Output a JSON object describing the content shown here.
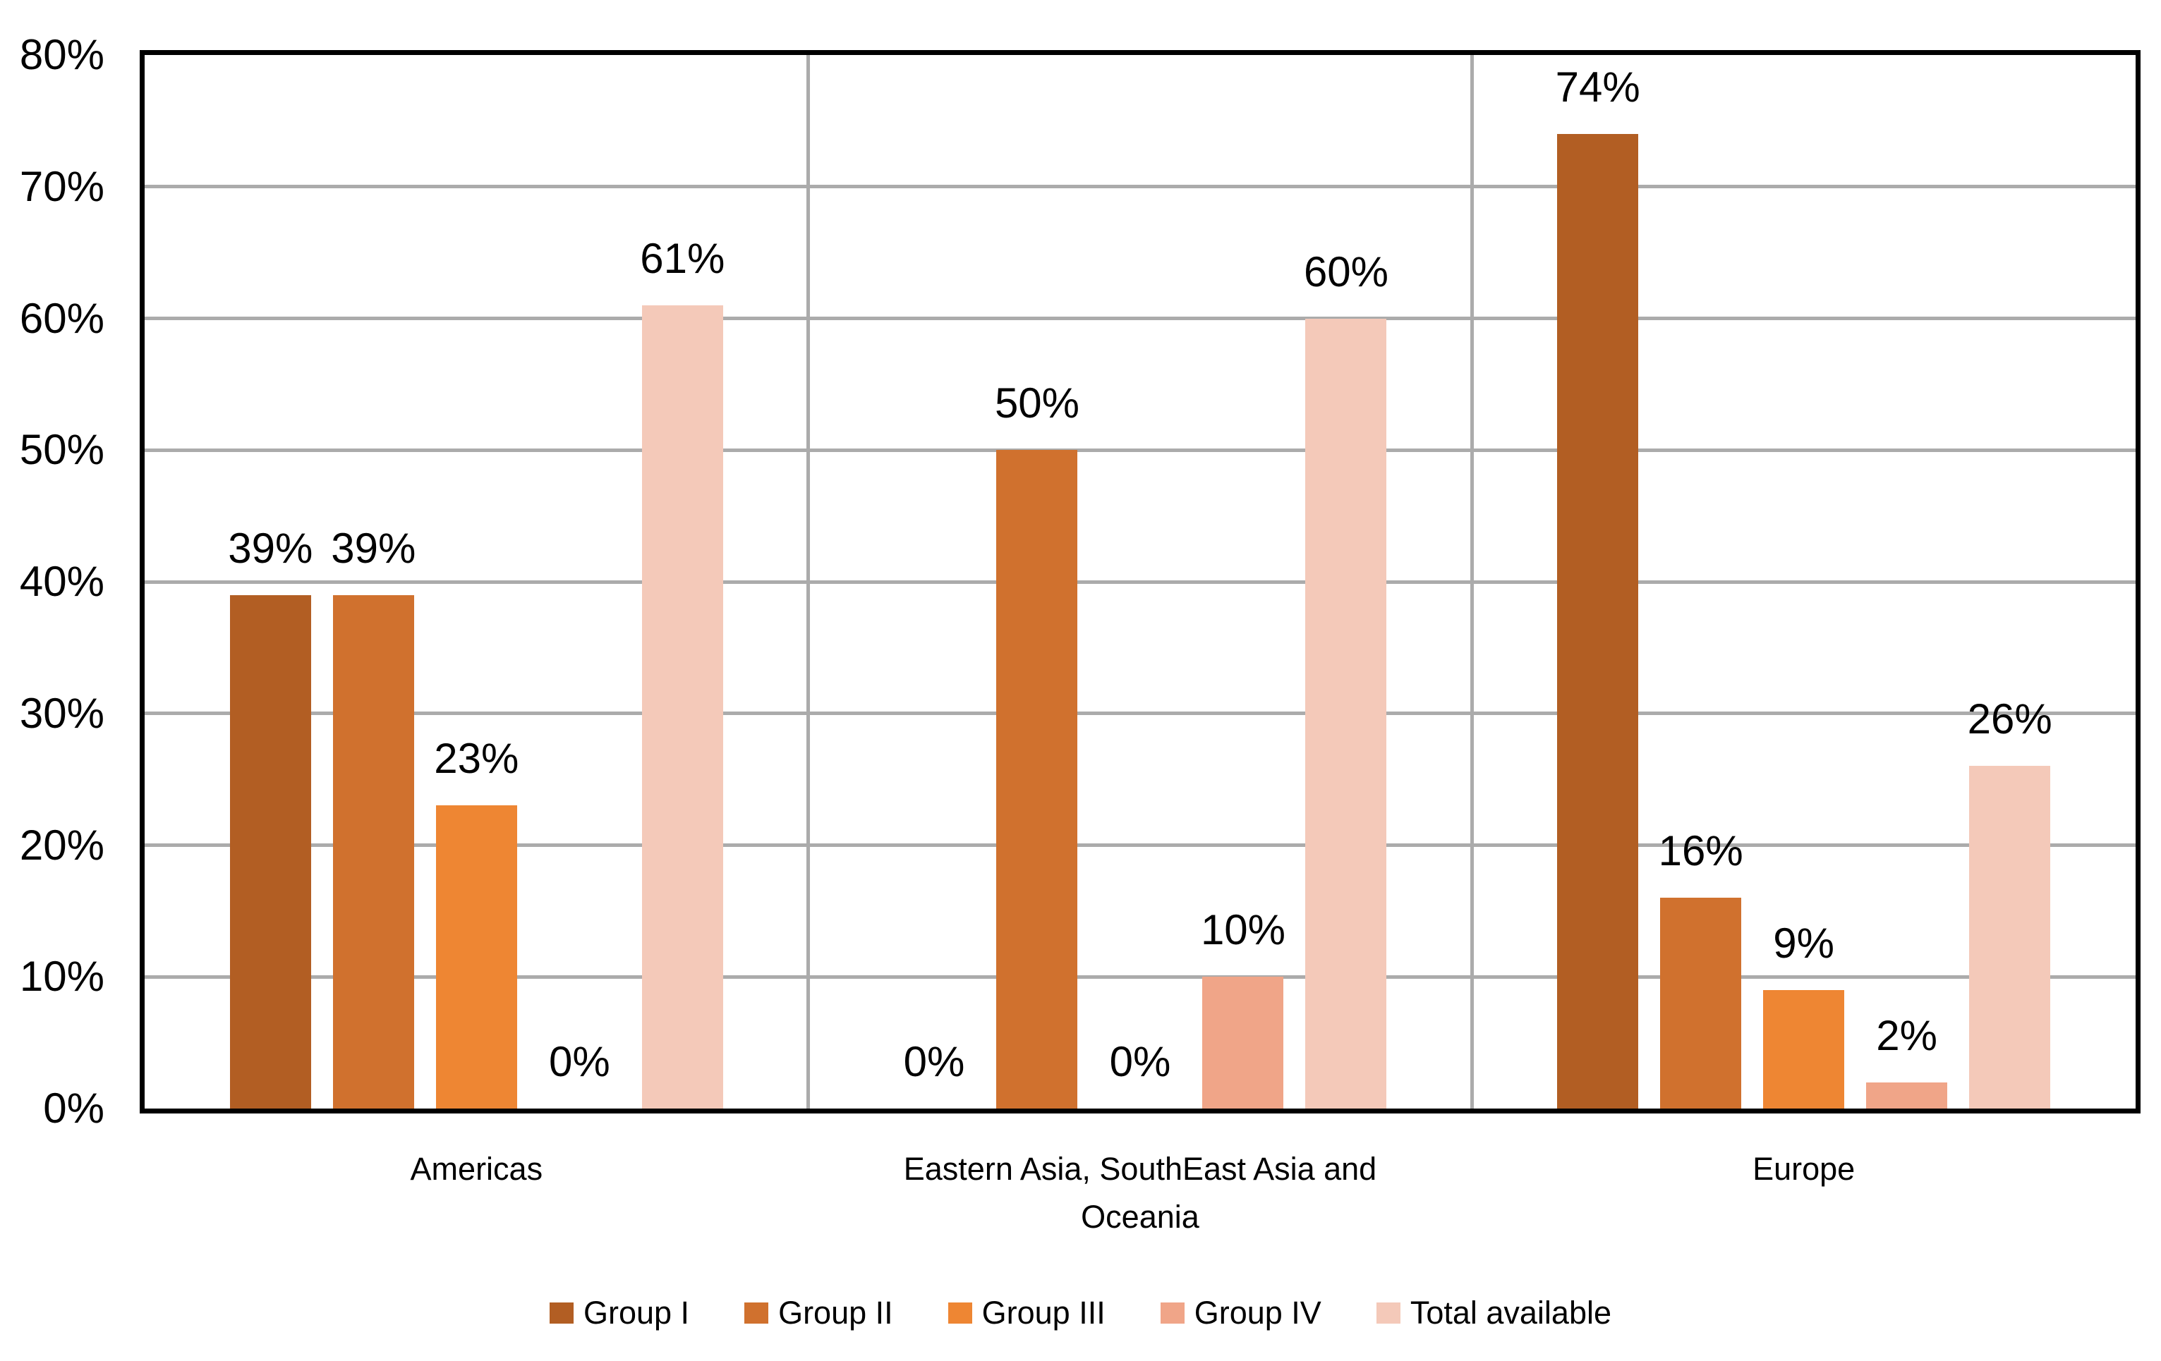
{
  "chart_data": {
    "type": "bar",
    "categories": [
      "Americas",
      "Eastern Asia, SouthEast Asia and Oceania",
      "Europe"
    ],
    "series": [
      {
        "name": "Group I",
        "color": "#B25E23",
        "values": [
          39,
          0,
          74
        ]
      },
      {
        "name": "Group II",
        "color": "#D0712E",
        "values": [
          39,
          50,
          16
        ]
      },
      {
        "name": "Group III",
        "color": "#EE8633",
        "values": [
          23,
          0,
          9
        ]
      },
      {
        "name": "Group IV",
        "color": "#F0A588",
        "values": [
          0,
          10,
          2
        ]
      },
      {
        "name": "Total available",
        "color": "#F4C9B9",
        "values": [
          61,
          60,
          26
        ]
      }
    ],
    "data_labels": [
      [
        "39%",
        "0%",
        "74%"
      ],
      [
        "39%",
        "50%",
        "16%"
      ],
      [
        "23%",
        "0%",
        "9%"
      ],
      [
        "0%",
        "10%",
        "2%"
      ],
      [
        "61%",
        "60%",
        "26%"
      ]
    ],
    "title": "",
    "xlabel": "",
    "ylabel": "",
    "ylim": [
      0,
      80
    ],
    "ytick_values": [
      0,
      10,
      20,
      30,
      40,
      50,
      60,
      70,
      80
    ],
    "ytick_labels": [
      "0%",
      "10%",
      "20%",
      "30%",
      "40%",
      "50%",
      "60%",
      "70%",
      "80%"
    ],
    "grid": true,
    "legend_position": "bottom",
    "colors": {
      "gridline": "#ababab",
      "plot_border": "#000000",
      "text": "#000000",
      "background": "#ffffff"
    }
  }
}
